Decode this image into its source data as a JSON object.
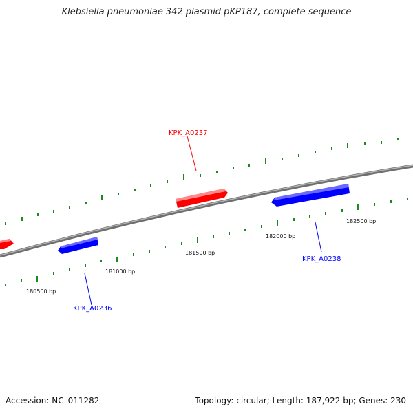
{
  "title": "Klebsiella pneumoniae 342 plasmid pKP187, complete sequence",
  "footer": {
    "accession": "Accession: NC_011282",
    "summary": "Topology: circular; Length: 187,922 bp; Genes: 230"
  },
  "colors": {
    "forward_gene": "#ff0000",
    "reverse_gene": "#0000ff",
    "backbone": "#8c8c8c",
    "ticks": "#1a8a1a"
  },
  "position_labels": [
    {
      "id": "pos-180500",
      "text": "180500 bp"
    },
    {
      "id": "pos-181000",
      "text": "181000 bp"
    },
    {
      "id": "pos-181500",
      "text": "181500 bp"
    },
    {
      "id": "pos-182000",
      "text": "182000 bp"
    },
    {
      "id": "pos-182500",
      "text": "182500 bp"
    }
  ],
  "genes": [
    {
      "id": "kpk-a0236",
      "name": "KPK_A0236",
      "strand": "reverse"
    },
    {
      "id": "kpk-a0237",
      "name": "KPK_A0237",
      "strand": "forward"
    },
    {
      "id": "kpk-a0238",
      "name": "KPK_A0238",
      "strand": "reverse"
    }
  ]
}
